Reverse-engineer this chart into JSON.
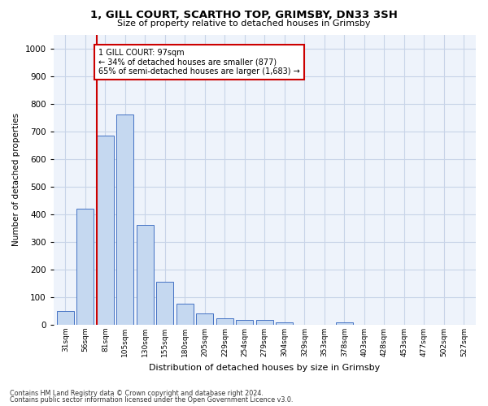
{
  "title": "1, GILL COURT, SCARTHO TOP, GRIMSBY, DN33 3SH",
  "subtitle": "Size of property relative to detached houses in Grimsby",
  "xlabel": "Distribution of detached houses by size in Grimsby",
  "ylabel": "Number of detached properties",
  "bar_labels": [
    "31sqm",
    "56sqm",
    "81sqm",
    "105sqm",
    "130sqm",
    "155sqm",
    "180sqm",
    "205sqm",
    "229sqm",
    "254sqm",
    "279sqm",
    "304sqm",
    "329sqm",
    "353sqm",
    "378sqm",
    "403sqm",
    "428sqm",
    "453sqm",
    "477sqm",
    "502sqm",
    "527sqm"
  ],
  "bar_values": [
    50,
    420,
    685,
    760,
    360,
    155,
    75,
    40,
    25,
    17,
    17,
    8,
    0,
    0,
    8,
    0,
    0,
    0,
    0,
    0,
    0
  ],
  "bar_color": "#c5d8f0",
  "bar_edge_color": "#4472c4",
  "vline_color": "#cc0000",
  "annotation_text": "1 GILL COURT: 97sqm\n← 34% of detached houses are smaller (877)\n65% of semi-detached houses are larger (1,683) →",
  "annotation_box_color": "#ffffff",
  "annotation_box_edge_color": "#cc0000",
  "ylim": [
    0,
    1050
  ],
  "yticks": [
    0,
    100,
    200,
    300,
    400,
    500,
    600,
    700,
    800,
    900,
    1000
  ],
  "grid_color": "#c8d4e8",
  "bg_color": "#eef3fb",
  "footer_line1": "Contains HM Land Registry data © Crown copyright and database right 2024.",
  "footer_line2": "Contains public sector information licensed under the Open Government Licence v3.0."
}
